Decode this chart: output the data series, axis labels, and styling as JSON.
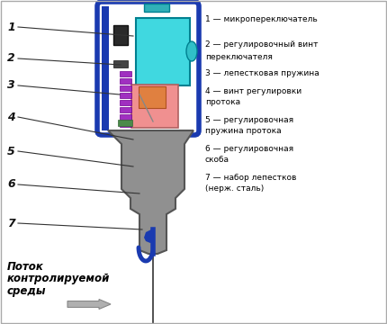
{
  "bg_color": "#ffffff",
  "border_color": "#1a3ab0",
  "body_color": "#909090",
  "body_edge_color": "#555555",
  "cyan_color": "#40d8e0",
  "cyan_edge": "#008090",
  "pink_color": "#f09090",
  "pink_edge": "#b06060",
  "orange_color": "#e08040",
  "purple_color": "#a030c0",
  "dark_blue": "#1a3ab0",
  "black": "#222222",
  "wire_color": "#333333",
  "labels_right": [
    [
      0,
      "1 — микропереключатель"
    ],
    [
      1,
      "2 — регулировочный винт"
    ],
    [
      2,
      "переключателя"
    ],
    [
      3,
      "3 — лепестковая пружина"
    ],
    [
      4,
      "4 — винт регулировки"
    ],
    [
      5,
      "протока"
    ],
    [
      6,
      "5 — регулировочная"
    ],
    [
      7,
      "пружина протока"
    ],
    [
      8,
      "6 — регулировочная"
    ],
    [
      9,
      "скоба"
    ],
    [
      10,
      "7 — набор лепестков"
    ],
    [
      11,
      "(нерж. сталь)"
    ]
  ],
  "flow_text": [
    "Поток",
    "контролируемой",
    "среды"
  ]
}
